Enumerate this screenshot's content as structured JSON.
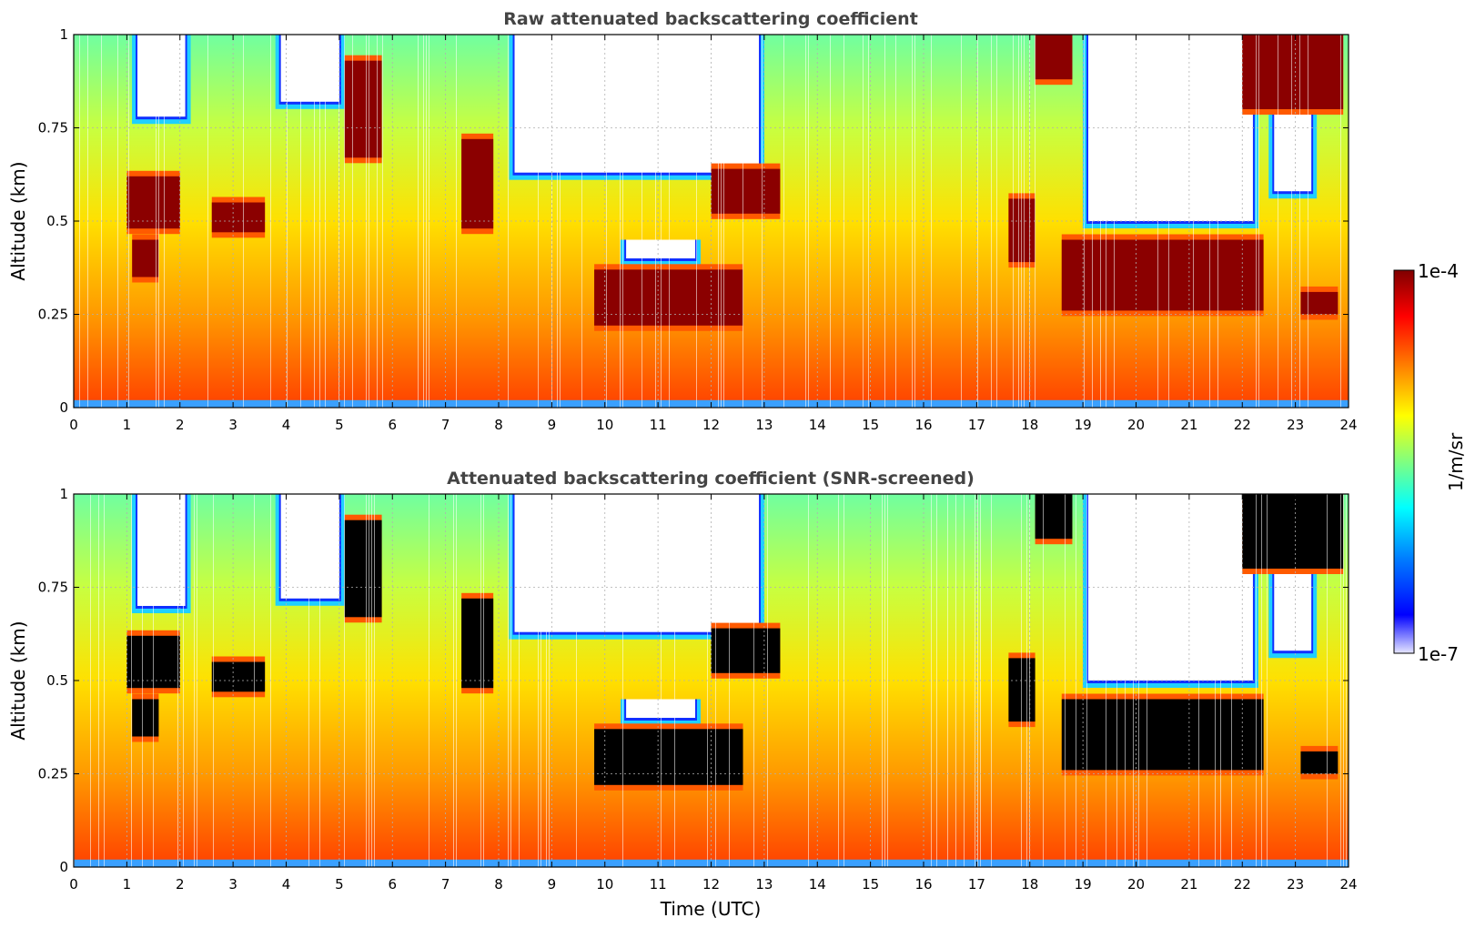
{
  "chart_data": [
    {
      "type": "heatmap",
      "title": "Raw attenuated backscattering coefficient",
      "ylabel": "Altitude (km)",
      "xlabel": "",
      "xlim": [
        0,
        24
      ],
      "ylim": [
        0,
        1
      ],
      "xticks": [
        "0",
        "1",
        "2",
        "3",
        "4",
        "5",
        "6",
        "7",
        "8",
        "9",
        "10",
        "11",
        "12",
        "13",
        "14",
        "15",
        "16",
        "17",
        "18",
        "19",
        "20",
        "21",
        "22",
        "23",
        "24"
      ],
      "yticks": [
        "0",
        "0.25",
        "0.5",
        "0.75",
        "1"
      ],
      "grid": true,
      "colorscale": "jet",
      "clouds": [
        {
          "x0": 1.0,
          "x1": 2.0,
          "y0": 0.48,
          "y1": 0.62
        },
        {
          "x0": 1.1,
          "x1": 1.6,
          "y0": 0.35,
          "y1": 0.45
        },
        {
          "x0": 2.6,
          "x1": 3.6,
          "y0": 0.47,
          "y1": 0.55
        },
        {
          "x0": 5.1,
          "x1": 5.8,
          "y0": 0.67,
          "y1": 0.93
        },
        {
          "x0": 7.3,
          "x1": 7.9,
          "y0": 0.48,
          "y1": 0.72
        },
        {
          "x0": 9.8,
          "x1": 12.6,
          "y0": 0.22,
          "y1": 0.37
        },
        {
          "x0": 12.0,
          "x1": 13.3,
          "y0": 0.52,
          "y1": 0.64
        },
        {
          "x0": 17.6,
          "x1": 18.1,
          "y0": 0.39,
          "y1": 0.56
        },
        {
          "x0": 18.6,
          "x1": 22.4,
          "y0": 0.26,
          "y1": 0.45
        },
        {
          "x0": 18.1,
          "x1": 18.8,
          "y0": 0.88,
          "y1": 1.0
        },
        {
          "x0": 22.0,
          "x1": 23.9,
          "y0": 0.8,
          "y1": 1.0
        },
        {
          "x0": 23.1,
          "x1": 23.8,
          "y0": 0.25,
          "y1": 0.31
        }
      ],
      "clear_air": [
        {
          "x0": 1.2,
          "x1": 2.1,
          "y0": 0.78,
          "y1": 1.0
        },
        {
          "x0": 3.9,
          "x1": 5.0,
          "y0": 0.82,
          "y1": 1.0
        },
        {
          "x0": 8.3,
          "x1": 12.9,
          "y0": 0.63,
          "y1": 1.0
        },
        {
          "x0": 10.4,
          "x1": 11.7,
          "y0": 0.4,
          "y1": 0.45
        },
        {
          "x0": 19.1,
          "x1": 22.2,
          "y0": 0.5,
          "y1": 1.0
        },
        {
          "x0": 22.6,
          "x1": 23.3,
          "y0": 0.58,
          "y1": 0.88
        }
      ]
    },
    {
      "type": "heatmap",
      "title": "Attenuated backscattering coefficient (SNR-screened)",
      "ylabel": "Altitude (km)",
      "xlabel": "Time (UTC)",
      "xlim": [
        0,
        24
      ],
      "ylim": [
        0,
        1
      ],
      "xticks": [
        "0",
        "1",
        "2",
        "3",
        "4",
        "5",
        "6",
        "7",
        "8",
        "9",
        "10",
        "11",
        "12",
        "13",
        "14",
        "15",
        "16",
        "17",
        "18",
        "19",
        "20",
        "21",
        "22",
        "23",
        "24"
      ],
      "yticks": [
        "0",
        "0.25",
        "0.5",
        "0.75",
        "1"
      ],
      "grid": true,
      "colorscale": "jet",
      "masked_color": "#000000",
      "clouds": [
        {
          "x0": 1.0,
          "x1": 2.0,
          "y0": 0.48,
          "y1": 0.62
        },
        {
          "x0": 1.1,
          "x1": 1.6,
          "y0": 0.35,
          "y1": 0.45
        },
        {
          "x0": 2.6,
          "x1": 3.6,
          "y0": 0.47,
          "y1": 0.55
        },
        {
          "x0": 5.1,
          "x1": 5.8,
          "y0": 0.67,
          "y1": 0.93
        },
        {
          "x0": 7.3,
          "x1": 7.9,
          "y0": 0.48,
          "y1": 0.72
        },
        {
          "x0": 9.8,
          "x1": 12.6,
          "y0": 0.22,
          "y1": 0.37
        },
        {
          "x0": 12.0,
          "x1": 13.3,
          "y0": 0.52,
          "y1": 0.64
        },
        {
          "x0": 17.6,
          "x1": 18.1,
          "y0": 0.39,
          "y1": 0.56
        },
        {
          "x0": 18.6,
          "x1": 22.4,
          "y0": 0.26,
          "y1": 0.45
        },
        {
          "x0": 18.1,
          "x1": 18.8,
          "y0": 0.88,
          "y1": 1.0
        },
        {
          "x0": 22.0,
          "x1": 23.9,
          "y0": 0.8,
          "y1": 1.0
        },
        {
          "x0": 23.1,
          "x1": 23.8,
          "y0": 0.25,
          "y1": 0.31
        }
      ],
      "clear_air": [
        {
          "x0": 1.2,
          "x1": 2.1,
          "y0": 0.7,
          "y1": 1.0
        },
        {
          "x0": 3.9,
          "x1": 5.0,
          "y0": 0.72,
          "y1": 1.0
        },
        {
          "x0": 8.3,
          "x1": 12.9,
          "y0": 0.63,
          "y1": 1.0
        },
        {
          "x0": 10.4,
          "x1": 11.7,
          "y0": 0.4,
          "y1": 0.45
        },
        {
          "x0": 19.1,
          "x1": 22.2,
          "y0": 0.5,
          "y1": 1.0
        },
        {
          "x0": 22.6,
          "x1": 23.3,
          "y0": 0.58,
          "y1": 0.88
        }
      ]
    }
  ],
  "colorbar": {
    "label": "1/m/sr",
    "max_label": "1e-4",
    "min_label": "1e-7",
    "scale": "log",
    "colors": [
      "#e6e6ff",
      "#0000ff",
      "#0080ff",
      "#00ffff",
      "#80ff80",
      "#ffff00",
      "#ff8000",
      "#ff0000",
      "#800000"
    ]
  }
}
